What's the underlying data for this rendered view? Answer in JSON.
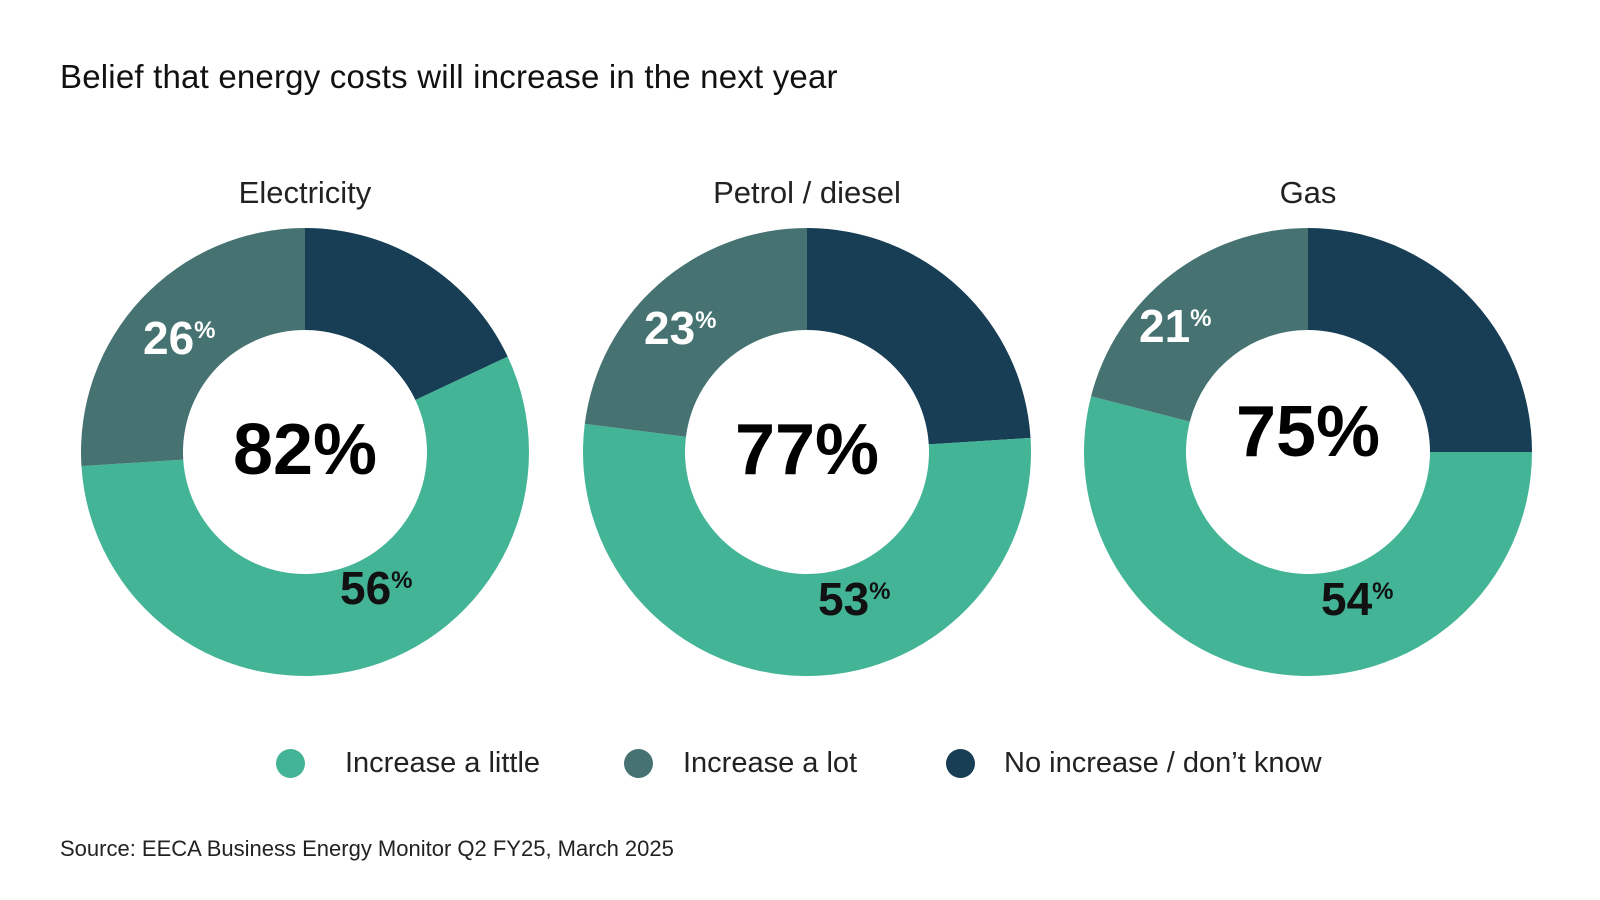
{
  "chart_data": {
    "type": "donut",
    "title": "Belief that energy costs will increase in the next year",
    "source": "Source: EECA Business Energy Monitor Q2 FY25, March 2025",
    "categories": [
      "Electricity",
      "Petrol / diesel",
      "Gas"
    ],
    "series": [
      {
        "name": "Increase a little",
        "color": "#43b596",
        "values": [
          56,
          53,
          54
        ]
      },
      {
        "name": "Increase a lot",
        "color": "#467372",
        "values": [
          26,
          23,
          21
        ]
      },
      {
        "name": "No increase / don’t know",
        "color": "#173e55",
        "values": [
          18,
          24,
          25
        ]
      }
    ],
    "totals": [
      "82%",
      "77%",
      "75%"
    ],
    "labels": {
      "increase_little": [
        "56",
        "53",
        "54"
      ],
      "increase_lot": [
        "26",
        "23",
        "21"
      ],
      "percent_sign": "%"
    }
  }
}
